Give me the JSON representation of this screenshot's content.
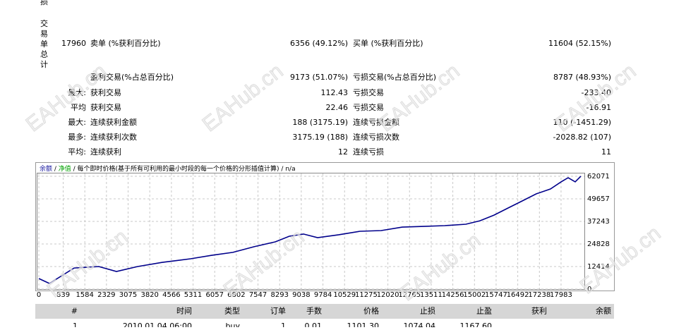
{
  "watermark": "EAHub.cn",
  "summary": {
    "cut_label": "损",
    "vertical_label": "交易单总计",
    "rows": [
      {
        "label": "17960",
        "text1": "卖单 (%获利百分比)",
        "value1": "6356 (49.12%)",
        "text2": "买单 (%获利百分比)",
        "value2": "11604 (52.15%)"
      },
      {
        "text1": "盈利交易(%占总百分比)",
        "value1": "9173 (51.07%)",
        "text2": "亏损交易(%占总百分比)",
        "value2": "8787 (48.93%)"
      },
      {
        "label": "最大:",
        "text1": "获利交易",
        "value1": "112.43",
        "text2": "亏损交易",
        "value2": "-233.40"
      },
      {
        "label": "平均",
        "text1": "获利交易",
        "value1": "22.46",
        "text2": "亏损交易",
        "value2": "-16.91"
      },
      {
        "label": "最大:",
        "text1": "连续获利金额",
        "value1": "188 (3175.19)",
        "text2": "连续亏损金额",
        "value2": "110 (-1451.29)"
      },
      {
        "label": "最多:",
        "text1": "连续获利次数",
        "value1": "3175.19 (188)",
        "text2": "连续亏损次数",
        "value2": "-2028.82 (107)"
      },
      {
        "label": "平均:",
        "text1": "连续获利",
        "value1": "12",
        "text2": "连续亏损",
        "value2": "11"
      }
    ]
  },
  "chart_data": {
    "type": "line",
    "header": [
      {
        "text": "余额",
        "color": "#1a1aa0"
      },
      {
        "text": "/"
      },
      {
        "text": "净值",
        "color": "#00a000"
      },
      {
        "text": "/ 每个即时价格(基于所有可利用的最小时段的每一个价格的分形插值计算) / n/a"
      }
    ],
    "x": [
      0,
      365,
      1215,
      2066,
      2673,
      3402,
      4253,
      5225,
      5954,
      6683,
      7412,
      8141,
      8627,
      9113,
      9599,
      10328,
      11057,
      11786,
      12515,
      13244,
      13973,
      14702,
      15188,
      15674,
      16160,
      16646,
      17132,
      17618,
      17983,
      18226,
      18469,
      18664
    ],
    "series": [
      {
        "name": "余额",
        "color": "#00008b",
        "values": [
          5800,
          3100,
          11600,
          12400,
          9700,
          12400,
          14700,
          16700,
          18600,
          20200,
          23300,
          26000,
          29100,
          30300,
          28300,
          29900,
          31800,
          32200,
          34100,
          34500,
          34900,
          35700,
          37600,
          40700,
          44600,
          48500,
          52400,
          55100,
          59000,
          61300,
          59000,
          62100
        ]
      }
    ],
    "xlim": [
      0,
      18786
    ],
    "xticks": [
      0,
      839,
      1584,
      2329,
      3075,
      3820,
      4566,
      5311,
      6057,
      6802,
      7547,
      8293,
      9038,
      9784,
      10529,
      11275,
      12020,
      12765,
      13511,
      14256,
      15002,
      15747,
      16492,
      17238,
      17983
    ],
    "ylim": [
      0,
      63000
    ],
    "yticks": [
      0,
      12414,
      24828,
      37243,
      49657,
      62071
    ],
    "grid": true
  },
  "trades_table": {
    "header": [
      "#",
      "时间",
      "类型",
      "订单",
      "手数",
      "价格",
      "止损",
      "止盈",
      "获利",
      "余额"
    ],
    "rows": [
      [
        "1",
        "2010.01.04 06:00",
        "buy",
        "1",
        "0.01",
        "1101.30",
        "1074.04",
        "1167.60"
      ]
    ]
  }
}
